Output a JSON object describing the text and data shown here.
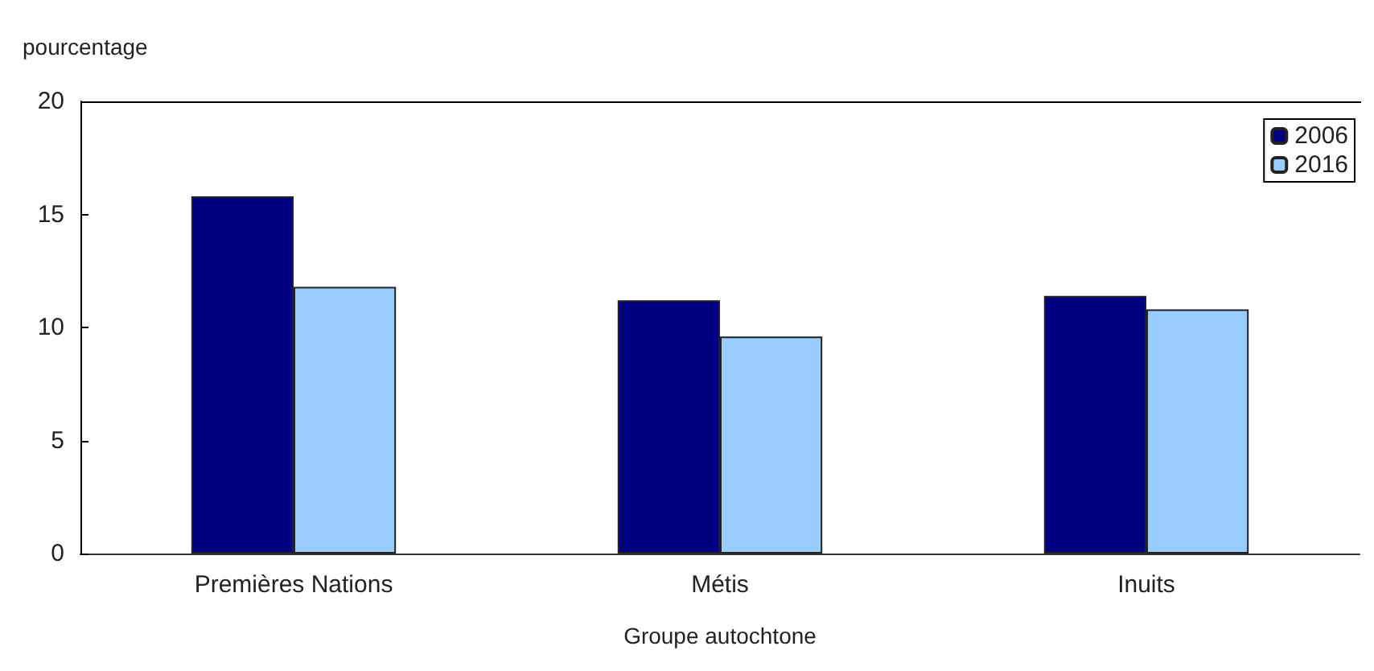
{
  "chart_data": {
    "type": "bar",
    "ylabel": "pourcentage",
    "xlabel": "Groupe autochtone",
    "categories": [
      "Premières Nations",
      "Métis",
      "Inuits"
    ],
    "series": [
      {
        "name": "2006",
        "color": "#000080",
        "values": [
          15.8,
          11.2,
          11.4
        ]
      },
      {
        "name": "2016",
        "color": "#99ccff",
        "values": [
          11.8,
          9.6,
          10.8
        ]
      }
    ],
    "ylim": [
      0,
      20
    ],
    "yticks": [
      0,
      5,
      10,
      15,
      20
    ],
    "grid": false,
    "legend": "top right"
  }
}
